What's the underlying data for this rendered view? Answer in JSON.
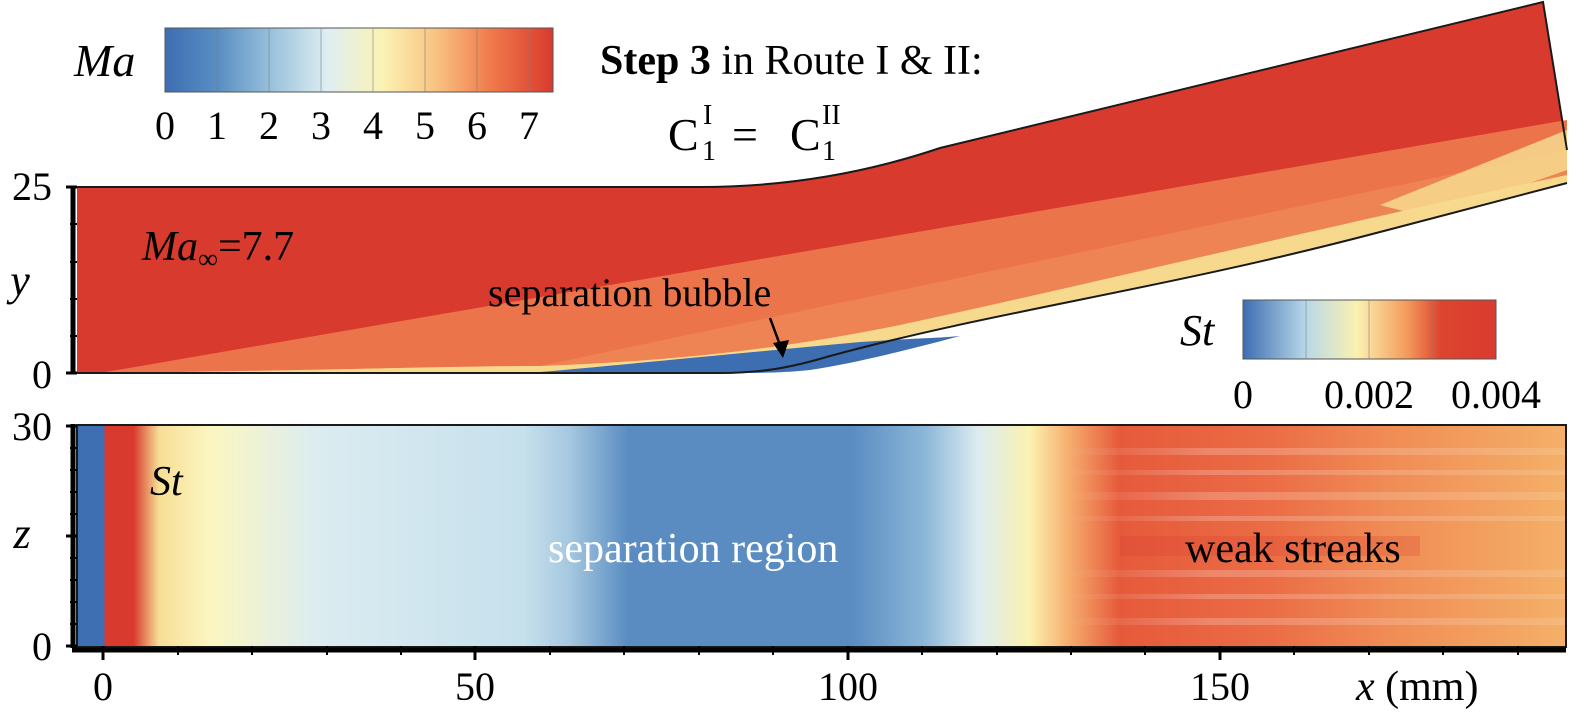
{
  "ma_colorbar": {
    "label": "Ma",
    "ticks": [
      "0",
      "1",
      "2",
      "3",
      "4",
      "5",
      "6",
      "7"
    ],
    "colors": [
      "#3d6eb2",
      "#5a8fc3",
      "#9cc3dd",
      "#dfeef2",
      "#fbf3b4",
      "#f8c281",
      "#f07a4b",
      "#d83a2e"
    ]
  },
  "step_title": {
    "bold": "Step 3",
    "rest": " in Route I & II:"
  },
  "equation": {
    "left_base": "C",
    "left_sup": "I",
    "left_sub": "1",
    "equals": "=",
    "right_base": "C",
    "right_sup": "II",
    "right_sub": "1"
  },
  "top_panel": {
    "y_label": "y",
    "y_ticks": [
      "25",
      "0"
    ],
    "mach_label_base": "Ma",
    "mach_label_sub": "∞",
    "mach_label_value": "=7.7",
    "annotation": "separation bubble",
    "colors": {
      "freestream": "#d93a2e",
      "shock_layer": "#ed7a4f",
      "boundary_layer": "#f6dc92",
      "bubble": "#3d6eb2"
    }
  },
  "st_colorbar": {
    "label": "St",
    "ticks": [
      "0",
      "0.002",
      "0.004"
    ],
    "colors": [
      "#3d6eb2",
      "#b9d8e8",
      "#fbf1b0",
      "#f39a5a",
      "#d93a2e"
    ]
  },
  "bottom_panel": {
    "z_label": "z",
    "z_ticks": [
      "30",
      "0"
    ],
    "field_label": "St",
    "region_label": "separation region",
    "streaks_label": "weak streaks",
    "x_ticks": [
      "0",
      "50",
      "100",
      "150"
    ],
    "x_label_var": "x",
    "x_label_unit": " (mm)"
  }
}
